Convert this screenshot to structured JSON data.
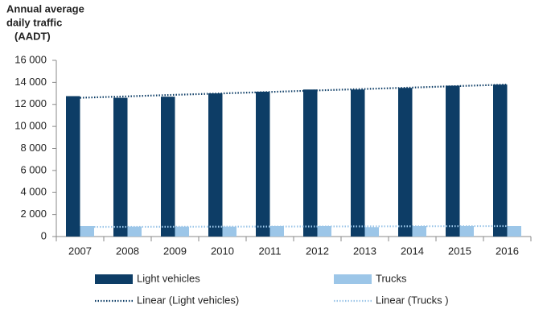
{
  "chart_data": {
    "type": "bar",
    "y_title_lines": [
      "Annual average",
      "daily traffic",
      "(AADT)"
    ],
    "categories": [
      "2007",
      "2008",
      "2009",
      "2010",
      "2011",
      "2012",
      "2013",
      "2014",
      "2015",
      "2016"
    ],
    "series": [
      {
        "name": "Light vehicles",
        "color": "#0d3d66",
        "values": [
          12750,
          12600,
          12700,
          13000,
          13150,
          13350,
          13350,
          13500,
          13700,
          13800
        ]
      },
      {
        "name": "Trucks",
        "color": "#9cc6e8",
        "values": [
          950,
          900,
          900,
          900,
          950,
          950,
          850,
          950,
          950,
          950
        ]
      }
    ],
    "trendlines": [
      {
        "name": "Linear (Light vehicles)",
        "color": "#0d3d66",
        "values": [
          12600,
          12730,
          12870,
          13000,
          13130,
          13270,
          13400,
          13530,
          13670,
          13800
        ]
      },
      {
        "name": "Linear (Trucks )",
        "color": "#9cc6e8",
        "values": [
          870,
          879,
          888,
          897,
          906,
          914,
          923,
          932,
          941,
          950
        ]
      }
    ],
    "ylim": [
      0,
      16000
    ],
    "yticks": [
      0,
      {
        "value": 2000,
        "label": "2 000"
      },
      {
        "value": 4000,
        "label": "4 000"
      },
      {
        "value": 6000,
        "label": "6 000"
      },
      {
        "value": 8000,
        "label": "8 000"
      },
      {
        "value": 10000,
        "label": "10 000"
      },
      {
        "value": 12000,
        "label": "12 000"
      },
      {
        "value": 14000,
        "label": "14 000"
      },
      {
        "value": 16000,
        "label": "16 000"
      }
    ],
    "grid": false
  }
}
